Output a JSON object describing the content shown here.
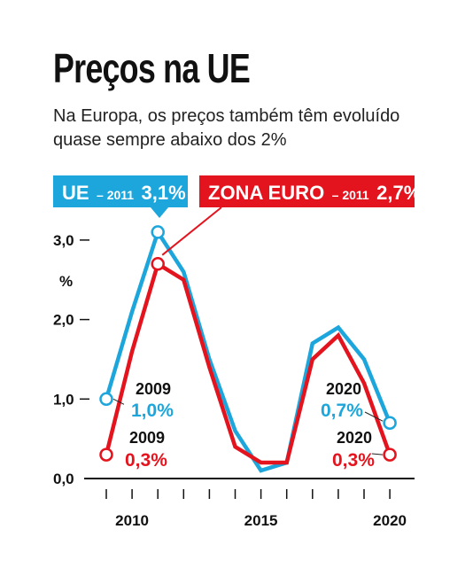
{
  "title": "Preços na UE",
  "subtitle": "Na Europa, os preços também têm evoluído quase sempre abaixo dos 2%",
  "colors": {
    "ue": "#1ca6dc",
    "euro": "#e4141f",
    "axis": "#111111"
  },
  "chart_data": {
    "type": "line",
    "title": "Preços na UE",
    "ylabel": "%",
    "xlim": [
      2009,
      2020
    ],
    "ylim": [
      0,
      3.0
    ],
    "x_ticks": [
      2010,
      2015,
      2020
    ],
    "y_ticks": [
      "0,0",
      "1,0",
      "2,0",
      "3,0"
    ],
    "x": [
      2009,
      2010,
      2011,
      2012,
      2013,
      2014,
      2015,
      2016,
      2017,
      2018,
      2019,
      2020
    ],
    "series": [
      {
        "name": "UE",
        "color": "#1ca6dc",
        "values": [
          1.0,
          2.1,
          3.1,
          2.6,
          1.5,
          0.6,
          0.1,
          0.2,
          1.7,
          1.9,
          1.5,
          0.7
        ]
      },
      {
        "name": "ZONA EURO",
        "color": "#e4141f",
        "values": [
          0.3,
          1.6,
          2.7,
          2.5,
          1.4,
          0.4,
          0.2,
          0.2,
          1.5,
          1.8,
          1.2,
          0.3
        ]
      }
    ],
    "legend": [
      {
        "label": "UE",
        "year": "– 2011",
        "value": "3,1%",
        "color": "#1ca6dc"
      },
      {
        "label": "ZONA EURO",
        "year": "– 2011",
        "value": "2,7%",
        "color": "#e4141f"
      }
    ],
    "annotations": [
      {
        "year": "2009",
        "value": "1,0%",
        "color": "#1ca6dc"
      },
      {
        "year": "2009",
        "value": "0,3%",
        "color": "#e4141f"
      },
      {
        "year": "2020",
        "value": "0,7%",
        "color": "#1ca6dc"
      },
      {
        "year": "2020",
        "value": "0,3%",
        "color": "#e4141f"
      }
    ]
  }
}
